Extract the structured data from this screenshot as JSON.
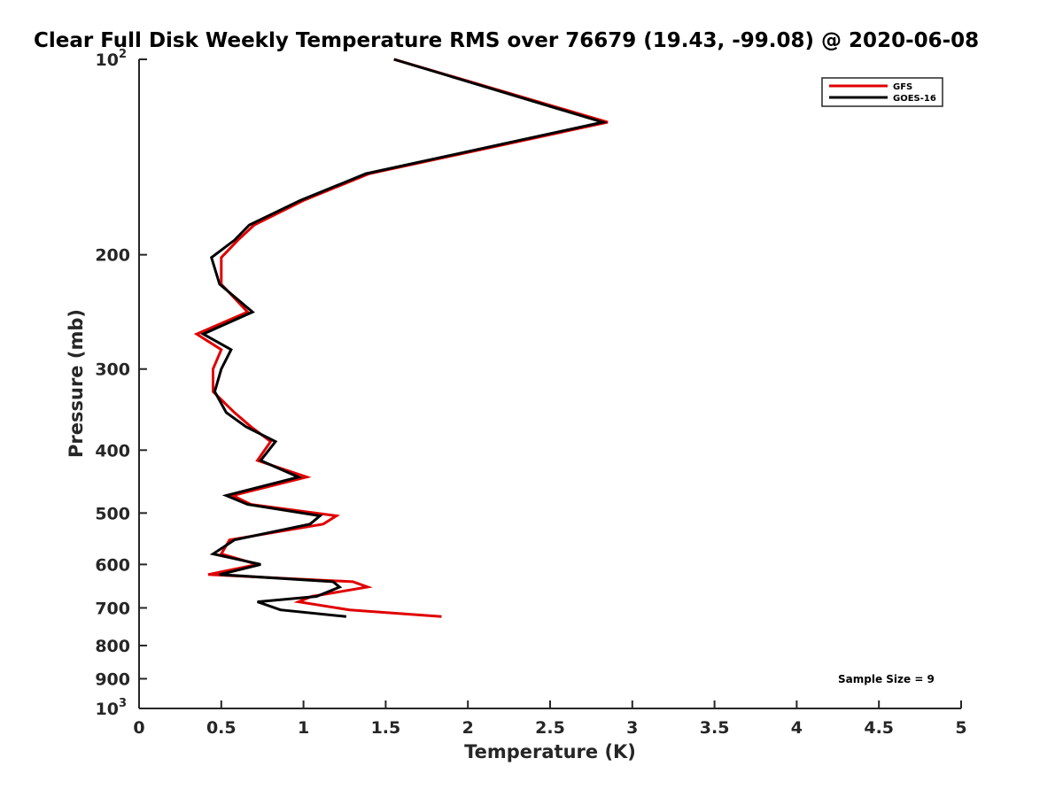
{
  "chart_data": {
    "type": "line",
    "title": "Clear Full Disk Weekly Temperature RMS over 76679 (19.43, -99.08) @ 2020-06-08",
    "xlabel": "Temperature (K)",
    "ylabel": "Pressure (mb)",
    "xlim": [
      0,
      5
    ],
    "ylim": [
      100,
      1000
    ],
    "yscale": "log",
    "y_reversed": true,
    "x_ticks": [
      "0",
      "0.5",
      "1",
      "1.5",
      "2",
      "2.5",
      "3",
      "3.5",
      "4",
      "4.5",
      "5"
    ],
    "y_ticks": [
      {
        "value": 100,
        "label": "10",
        "exp": "2"
      },
      {
        "value": 200,
        "label": "200"
      },
      {
        "value": 300,
        "label": "300"
      },
      {
        "value": 400,
        "label": "400"
      },
      {
        "value": 500,
        "label": "500"
      },
      {
        "value": 600,
        "label": "600"
      },
      {
        "value": 700,
        "label": "700"
      },
      {
        "value": 800,
        "label": "800"
      },
      {
        "value": 900,
        "label": "900"
      },
      {
        "value": 1000,
        "label": "10",
        "exp": "3"
      }
    ],
    "grid": false,
    "legend_position": "top-right",
    "annotation": "Sample Size = 9",
    "series": [
      {
        "name": "GFS",
        "color": "#e00000",
        "points": [
          [
            1.55,
            100
          ],
          [
            2.85,
            125
          ],
          [
            1.4,
            150
          ],
          [
            1.0,
            165
          ],
          [
            0.7,
            180
          ],
          [
            0.6,
            190
          ],
          [
            0.5,
            202
          ],
          [
            0.5,
            222
          ],
          [
            0.66,
            245
          ],
          [
            0.35,
            265
          ],
          [
            0.5,
            280
          ],
          [
            0.45,
            300
          ],
          [
            0.45,
            325
          ],
          [
            0.58,
            350
          ],
          [
            0.68,
            368
          ],
          [
            0.8,
            388
          ],
          [
            0.72,
            415
          ],
          [
            1.02,
            440
          ],
          [
            0.57,
            470
          ],
          [
            0.68,
            485
          ],
          [
            1.2,
            505
          ],
          [
            1.12,
            520
          ],
          [
            0.55,
            550
          ],
          [
            0.5,
            578
          ],
          [
            0.72,
            600
          ],
          [
            0.42,
            622
          ],
          [
            1.3,
            638
          ],
          [
            1.39,
            650
          ],
          [
            1.05,
            672
          ],
          [
            0.97,
            685
          ],
          [
            1.28,
            705
          ],
          [
            1.84,
            722
          ]
        ]
      },
      {
        "name": "GOES-16",
        "color": "#000000",
        "points": [
          [
            1.55,
            100
          ],
          [
            2.82,
            125
          ],
          [
            1.38,
            150
          ],
          [
            0.98,
            165
          ],
          [
            0.67,
            180
          ],
          [
            0.58,
            190
          ],
          [
            0.44,
            202
          ],
          [
            0.49,
            222
          ],
          [
            0.69,
            245
          ],
          [
            0.39,
            265
          ],
          [
            0.56,
            280
          ],
          [
            0.5,
            300
          ],
          [
            0.46,
            325
          ],
          [
            0.53,
            350
          ],
          [
            0.65,
            368
          ],
          [
            0.83,
            388
          ],
          [
            0.74,
            415
          ],
          [
            0.97,
            440
          ],
          [
            0.53,
            470
          ],
          [
            0.66,
            485
          ],
          [
            1.1,
            505
          ],
          [
            1.04,
            520
          ],
          [
            0.58,
            550
          ],
          [
            0.45,
            578
          ],
          [
            0.74,
            600
          ],
          [
            0.49,
            622
          ],
          [
            1.18,
            638
          ],
          [
            1.22,
            650
          ],
          [
            1.08,
            672
          ],
          [
            0.72,
            685
          ],
          [
            0.86,
            705
          ],
          [
            1.26,
            722
          ]
        ]
      }
    ]
  }
}
